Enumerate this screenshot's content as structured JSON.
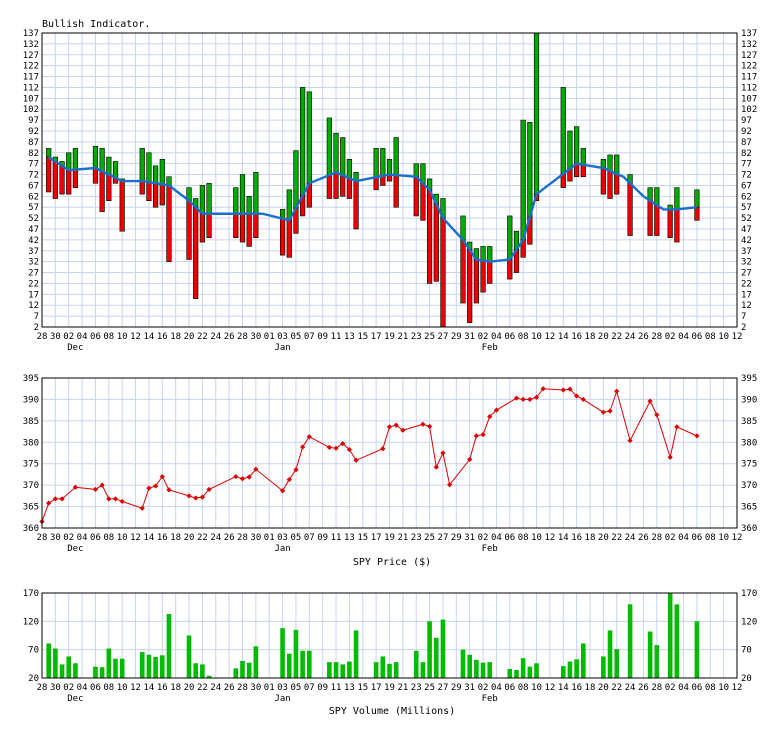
{
  "colors": {
    "grid": "#c8d4f0",
    "bull": "#00aa00",
    "bear": "#ee0000",
    "ma_line": "#1a6fcc",
    "price_line": "#dd0000",
    "volume": "#00bb00"
  },
  "x_axis": {
    "day_labels": [
      "28",
      "30",
      "02",
      "04",
      "06",
      "08",
      "10",
      "12",
      "14",
      "16",
      "18",
      "20",
      "22",
      "24",
      "26",
      "28",
      "30",
      "01",
      "03",
      "05",
      "07",
      "09",
      "11",
      "13",
      "15",
      "17",
      "19",
      "21",
      "23",
      "25",
      "27",
      "29",
      "31",
      "02",
      "04",
      "06",
      "08",
      "10",
      "12",
      "14",
      "16",
      "18",
      "20",
      "22",
      "24",
      "26",
      "28",
      "02",
      "04",
      "06",
      "08",
      "10",
      "12"
    ],
    "month_labels": [
      {
        "text": "Dec",
        "day": 5
      },
      {
        "text": "Jan",
        "day": 36
      },
      {
        "text": "Feb",
        "day": 67
      }
    ]
  },
  "chart_data": [
    {
      "type": "bar",
      "title": "Bullish Indicator.",
      "ylim": [
        2,
        137
      ],
      "yticks": [
        2,
        7,
        12,
        17,
        22,
        27,
        32,
        37,
        42,
        47,
        52,
        57,
        62,
        67,
        72,
        77,
        82,
        87,
        92,
        97,
        102,
        107,
        112,
        117,
        122,
        127,
        132,
        137
      ],
      "bars": [
        {
          "day": 1,
          "up": 84,
          "down": 64
        },
        {
          "day": 2,
          "up": 80,
          "down": 61
        },
        {
          "day": 3,
          "up": 78,
          "down": 63
        },
        {
          "day": 4,
          "up": 82,
          "down": 63
        },
        {
          "day": 5,
          "up": 84,
          "down": 66
        },
        {
          "day": 8,
          "up": 85,
          "down": 68
        },
        {
          "day": 9,
          "up": 84,
          "down": 55
        },
        {
          "day": 10,
          "up": 80,
          "down": 60
        },
        {
          "day": 11,
          "up": 78,
          "down": 68
        },
        {
          "day": 12,
          "up": 70,
          "down": 46
        },
        {
          "day": 15,
          "up": 84,
          "down": 63
        },
        {
          "day": 16,
          "up": 82,
          "down": 60
        },
        {
          "day": 17,
          "up": 76,
          "down": 57
        },
        {
          "day": 18,
          "up": 79,
          "down": 58
        },
        {
          "day": 19,
          "up": 71,
          "down": 32
        },
        {
          "day": 22,
          "up": 66,
          "down": 33
        },
        {
          "day": 23,
          "up": 61,
          "down": 15
        },
        {
          "day": 24,
          "up": 67,
          "down": 41
        },
        {
          "day": 25,
          "up": 68,
          "down": 43
        },
        {
          "day": 29,
          "up": 66,
          "down": 43
        },
        {
          "day": 30,
          "up": 72,
          "down": 41
        },
        {
          "day": 31,
          "up": 62,
          "down": 39
        },
        {
          "day": 32,
          "up": 73,
          "down": 43
        },
        {
          "day": 36,
          "up": 56,
          "down": 35
        },
        {
          "day": 37,
          "up": 65,
          "down": 34
        },
        {
          "day": 38,
          "up": 83,
          "down": 45
        },
        {
          "day": 39,
          "up": 112,
          "down": 53
        },
        {
          "day": 40,
          "up": 110,
          "down": 57
        },
        {
          "day": 43,
          "up": 98,
          "down": 61
        },
        {
          "day": 44,
          "up": 91,
          "down": 61
        },
        {
          "day": 45,
          "up": 89,
          "down": 62
        },
        {
          "day": 46,
          "up": 79,
          "down": 61
        },
        {
          "day": 47,
          "up": 73,
          "down": 47
        },
        {
          "day": 50,
          "up": 84,
          "down": 65
        },
        {
          "day": 51,
          "up": 84,
          "down": 67
        },
        {
          "day": 52,
          "up": 79,
          "down": 69
        },
        {
          "day": 53,
          "up": 89,
          "down": 57
        },
        {
          "day": 56,
          "up": 77,
          "down": 53
        },
        {
          "day": 57,
          "up": 77,
          "down": 51
        },
        {
          "day": 58,
          "up": 70,
          "down": 22
        },
        {
          "day": 59,
          "up": 63,
          "down": 23
        },
        {
          "day": 60,
          "up": 61,
          "down": 2
        },
        {
          "day": 63,
          "up": 53,
          "down": 13
        },
        {
          "day": 64,
          "up": 41,
          "down": 4
        },
        {
          "day": 65,
          "up": 38,
          "down": 13
        },
        {
          "day": 66,
          "up": 39,
          "down": 18
        },
        {
          "day": 67,
          "up": 39,
          "down": 22
        },
        {
          "day": 70,
          "up": 53,
          "down": 24
        },
        {
          "day": 71,
          "up": 46,
          "down": 27
        },
        {
          "day": 72,
          "up": 97,
          "down": 34
        },
        {
          "day": 73,
          "up": 96,
          "down": 40
        },
        {
          "day": 74,
          "up": 137,
          "down": 60
        },
        {
          "day": 78,
          "up": 112,
          "down": 66
        },
        {
          "day": 79,
          "up": 92,
          "down": 69
        },
        {
          "day": 80,
          "up": 94,
          "down": 71
        },
        {
          "day": 81,
          "up": 84,
          "down": 71
        },
        {
          "day": 84,
          "up": 79,
          "down": 63
        },
        {
          "day": 85,
          "up": 81,
          "down": 61
        },
        {
          "day": 86,
          "up": 81,
          "down": 63
        },
        {
          "day": 88,
          "up": 72,
          "down": 44
        },
        {
          "day": 91,
          "up": 66,
          "down": 44
        },
        {
          "day": 92,
          "up": 66,
          "down": 44
        },
        {
          "day": 94,
          "up": 58,
          "down": 43
        },
        {
          "day": 95,
          "up": 66,
          "down": 41
        },
        {
          "day": 98,
          "up": 65,
          "down": 51
        }
      ],
      "ma": [
        {
          "day": 1,
          "y": 80
        },
        {
          "day": 4,
          "y": 74
        },
        {
          "day": 8,
          "y": 75
        },
        {
          "day": 12,
          "y": 69
        },
        {
          "day": 15,
          "y": 69
        },
        {
          "day": 19,
          "y": 67
        },
        {
          "day": 22,
          "y": 60
        },
        {
          "day": 24,
          "y": 54
        },
        {
          "day": 27,
          "y": 54
        },
        {
          "day": 30,
          "y": 54
        },
        {
          "day": 33,
          "y": 54
        },
        {
          "day": 37,
          "y": 51
        },
        {
          "day": 40,
          "y": 68
        },
        {
          "day": 44,
          "y": 73
        },
        {
          "day": 47,
          "y": 69
        },
        {
          "day": 52,
          "y": 72
        },
        {
          "day": 56,
          "y": 71
        },
        {
          "day": 58,
          "y": 65
        },
        {
          "day": 60,
          "y": 52
        },
        {
          "day": 63,
          "y": 42
        },
        {
          "day": 65,
          "y": 33
        },
        {
          "day": 67,
          "y": 32
        },
        {
          "day": 70,
          "y": 33
        },
        {
          "day": 72,
          "y": 42
        },
        {
          "day": 74,
          "y": 63
        },
        {
          "day": 77,
          "y": 70
        },
        {
          "day": 80,
          "y": 77
        },
        {
          "day": 84,
          "y": 75
        },
        {
          "day": 87,
          "y": 71
        },
        {
          "day": 90,
          "y": 62
        },
        {
          "day": 93,
          "y": 56
        },
        {
          "day": 95,
          "y": 56
        },
        {
          "day": 98,
          "y": 57
        }
      ]
    },
    {
      "type": "line",
      "title": "",
      "xlabel": "SPY Price ($)",
      "ylim": [
        360,
        395
      ],
      "yticks": [
        360,
        365,
        370,
        375,
        380,
        385,
        390,
        395
      ],
      "points": [
        {
          "day": 0,
          "y": 361.5
        },
        {
          "day": 1,
          "y": 365.8
        },
        {
          "day": 2,
          "y": 366.8
        },
        {
          "day": 3,
          "y": 366.8
        },
        {
          "day": 5,
          "y": 369.5
        },
        {
          "day": 8,
          "y": 369
        },
        {
          "day": 9,
          "y": 370
        },
        {
          "day": 10,
          "y": 366.8
        },
        {
          "day": 11,
          "y": 366.8
        },
        {
          "day": 12,
          "y": 366.2
        },
        {
          "day": 15,
          "y": 364.6
        },
        {
          "day": 16,
          "y": 369.3
        },
        {
          "day": 17,
          "y": 369.8
        },
        {
          "day": 18,
          "y": 372
        },
        {
          "day": 19,
          "y": 368.9
        },
        {
          "day": 22,
          "y": 367.5
        },
        {
          "day": 23,
          "y": 367
        },
        {
          "day": 24,
          "y": 367.2
        },
        {
          "day": 25,
          "y": 369
        },
        {
          "day": 29,
          "y": 372
        },
        {
          "day": 30,
          "y": 371.5
        },
        {
          "day": 31,
          "y": 371.9
        },
        {
          "day": 32,
          "y": 373.7
        },
        {
          "day": 36,
          "y": 368.7
        },
        {
          "day": 37,
          "y": 371.3
        },
        {
          "day": 38,
          "y": 373.6
        },
        {
          "day": 39,
          "y": 378.9
        },
        {
          "day": 40,
          "y": 381.3
        },
        {
          "day": 43,
          "y": 378.8
        },
        {
          "day": 44,
          "y": 378.6
        },
        {
          "day": 45,
          "y": 379.7
        },
        {
          "day": 46,
          "y": 378.3
        },
        {
          "day": 47,
          "y": 375.8
        },
        {
          "day": 51,
          "y": 378.5
        },
        {
          "day": 52,
          "y": 383.6
        },
        {
          "day": 53,
          "y": 384
        },
        {
          "day": 54,
          "y": 382.8
        },
        {
          "day": 57,
          "y": 384.2
        },
        {
          "day": 58,
          "y": 383.7
        },
        {
          "day": 59,
          "y": 374.2
        },
        {
          "day": 60,
          "y": 377.5
        },
        {
          "day": 61,
          "y": 370.1
        },
        {
          "day": 64,
          "y": 376
        },
        {
          "day": 65,
          "y": 381.5
        },
        {
          "day": 66,
          "y": 381.8
        },
        {
          "day": 67,
          "y": 386
        },
        {
          "day": 68,
          "y": 387.5
        },
        {
          "day": 71,
          "y": 390.3
        },
        {
          "day": 72,
          "y": 390
        },
        {
          "day": 73,
          "y": 390
        },
        {
          "day": 74,
          "y": 390.5
        },
        {
          "day": 75,
          "y": 392.5
        },
        {
          "day": 78,
          "y": 392.2
        },
        {
          "day": 79,
          "y": 392.4
        },
        {
          "day": 80,
          "y": 390.8
        },
        {
          "day": 81,
          "y": 390
        },
        {
          "day": 84,
          "y": 387
        },
        {
          "day": 85,
          "y": 387.3
        },
        {
          "day": 86,
          "y": 391.9
        },
        {
          "day": 88,
          "y": 380.4
        },
        {
          "day": 91,
          "y": 389.6
        },
        {
          "day": 92,
          "y": 386.4
        },
        {
          "day": 94,
          "y": 376.5
        },
        {
          "day": 95,
          "y": 383.6
        },
        {
          "day": 98,
          "y": 381.5
        }
      ]
    },
    {
      "type": "bar",
      "title": "",
      "xlabel": "SPY Volume (Millions)",
      "ylim": [
        20,
        170
      ],
      "yticks": [
        20,
        70,
        120,
        170
      ],
      "bars": [
        {
          "day": 1,
          "y": 81
        },
        {
          "day": 2,
          "y": 72
        },
        {
          "day": 3,
          "y": 44
        },
        {
          "day": 4,
          "y": 58
        },
        {
          "day": 5,
          "y": 46
        },
        {
          "day": 8,
          "y": 40
        },
        {
          "day": 9,
          "y": 39
        },
        {
          "day": 10,
          "y": 72
        },
        {
          "day": 11,
          "y": 54
        },
        {
          "day": 12,
          "y": 54
        },
        {
          "day": 15,
          "y": 66
        },
        {
          "day": 16,
          "y": 61
        },
        {
          "day": 17,
          "y": 57
        },
        {
          "day": 18,
          "y": 60
        },
        {
          "day": 19,
          "y": 133
        },
        {
          "day": 22,
          "y": 95
        },
        {
          "day": 23,
          "y": 46
        },
        {
          "day": 24,
          "y": 44
        },
        {
          "day": 25,
          "y": 24
        },
        {
          "day": 29,
          "y": 37
        },
        {
          "day": 30,
          "y": 50
        },
        {
          "day": 31,
          "y": 47
        },
        {
          "day": 32,
          "y": 76
        },
        {
          "day": 36,
          "y": 108
        },
        {
          "day": 37,
          "y": 63
        },
        {
          "day": 38,
          "y": 105
        },
        {
          "day": 39,
          "y": 68
        },
        {
          "day": 40,
          "y": 68
        },
        {
          "day": 43,
          "y": 48
        },
        {
          "day": 44,
          "y": 48
        },
        {
          "day": 45,
          "y": 44
        },
        {
          "day": 46,
          "y": 49
        },
        {
          "day": 47,
          "y": 104
        },
        {
          "day": 50,
          "y": 48
        },
        {
          "day": 51,
          "y": 58
        },
        {
          "day": 52,
          "y": 45
        },
        {
          "day": 53,
          "y": 48
        },
        {
          "day": 56,
          "y": 68
        },
        {
          "day": 57,
          "y": 48
        },
        {
          "day": 58,
          "y": 120
        },
        {
          "day": 59,
          "y": 91
        },
        {
          "day": 60,
          "y": 123
        },
        {
          "day": 63,
          "y": 70
        },
        {
          "day": 64,
          "y": 61
        },
        {
          "day": 65,
          "y": 52
        },
        {
          "day": 66,
          "y": 47
        },
        {
          "day": 67,
          "y": 48
        },
        {
          "day": 70,
          "y": 36
        },
        {
          "day": 71,
          "y": 34
        },
        {
          "day": 72,
          "y": 55
        },
        {
          "day": 73,
          "y": 40
        },
        {
          "day": 74,
          "y": 46
        },
        {
          "day": 78,
          "y": 41
        },
        {
          "day": 79,
          "y": 49
        },
        {
          "day": 80,
          "y": 53
        },
        {
          "day": 81,
          "y": 81
        },
        {
          "day": 84,
          "y": 58
        },
        {
          "day": 85,
          "y": 104
        },
        {
          "day": 86,
          "y": 71
        },
        {
          "day": 88,
          "y": 150
        },
        {
          "day": 91,
          "y": 102
        },
        {
          "day": 92,
          "y": 78
        },
        {
          "day": 94,
          "y": 173
        },
        {
          "day": 95,
          "y": 150
        },
        {
          "day": 98,
          "y": 120
        }
      ]
    }
  ]
}
